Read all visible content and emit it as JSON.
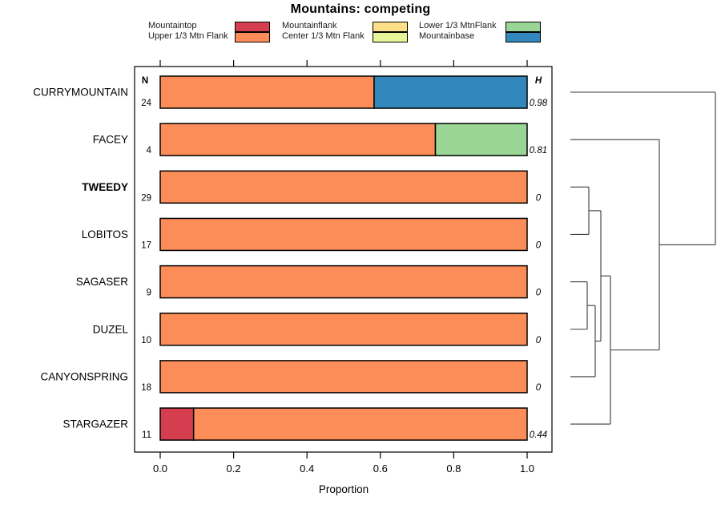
{
  "title": "Mountains: competing",
  "chart_data": {
    "type": "bar",
    "orientation": "horizontal-stacked",
    "title": "Mountains: competing",
    "xlabel": "Proportion",
    "xlim": [
      0,
      1
    ],
    "xticks": [
      "0.0",
      "0.2",
      "0.4",
      "0.6",
      "0.8",
      "1.0"
    ],
    "grid": false,
    "legend_position": "top",
    "columns": {
      "n_header": "N",
      "h_header": "H"
    },
    "legend": [
      {
        "label": "Mountaintop",
        "color": "#D53E4F"
      },
      {
        "label": "Upper 1/3 Mtn Flank",
        "color": "#FC8D59"
      },
      {
        "label": "Mountainflank",
        "color": "#FEE08B"
      },
      {
        "label": "Center 1/3 Mtn Flank",
        "color": "#E6F598"
      },
      {
        "label": "Lower 1/3 MtnFlank",
        "color": "#99D594"
      },
      {
        "label": "Mountainbase",
        "color": "#3288BD"
      }
    ],
    "rows": [
      {
        "label": "CURRYMOUNTAIN",
        "bold": false,
        "n": 24,
        "h": "0.98",
        "segments": [
          {
            "key": "Upper 1/3 Mtn Flank",
            "value": 0.583
          },
          {
            "key": "Mountainbase",
            "value": 0.417
          }
        ]
      },
      {
        "label": "FACEY",
        "bold": false,
        "n": 4,
        "h": "0.81",
        "segments": [
          {
            "key": "Upper 1/3 Mtn Flank",
            "value": 0.75
          },
          {
            "key": "Lower 1/3 MtnFlank",
            "value": 0.25
          }
        ]
      },
      {
        "label": "TWEEDY",
        "bold": true,
        "n": 29,
        "h": "0",
        "segments": [
          {
            "key": "Upper 1/3 Mtn Flank",
            "value": 1.0
          }
        ]
      },
      {
        "label": "LOBITOS",
        "bold": false,
        "n": 17,
        "h": "0",
        "segments": [
          {
            "key": "Upper 1/3 Mtn Flank",
            "value": 1.0
          }
        ]
      },
      {
        "label": "SAGASER",
        "bold": false,
        "n": 9,
        "h": "0",
        "segments": [
          {
            "key": "Upper 1/3 Mtn Flank",
            "value": 1.0
          }
        ]
      },
      {
        "label": "DUZEL",
        "bold": false,
        "n": 10,
        "h": "0",
        "segments": [
          {
            "key": "Upper 1/3 Mtn Flank",
            "value": 1.0
          }
        ]
      },
      {
        "label": "CANYONSPRING",
        "bold": false,
        "n": 18,
        "h": "0",
        "segments": [
          {
            "key": "Upper 1/3 Mtn Flank",
            "value": 1.0
          }
        ]
      },
      {
        "label": "STARGAZER",
        "bold": false,
        "n": 11,
        "h": "0.44",
        "segments": [
          {
            "key": "Mountaintop",
            "value": 0.091
          },
          {
            "key": "Upper 1/3 Mtn Flank",
            "value": 0.909
          }
        ]
      }
    ],
    "dendrogram": {
      "leaves": [
        "CURRYMOUNTAIN",
        "FACEY",
        "TWEEDY",
        "LOBITOS",
        "SAGASER",
        "DUZEL",
        "CANYONSPRING",
        "STARGAZER"
      ],
      "merges": [
        {
          "id": "m1",
          "a": "leaf:TWEEDY",
          "b": "leaf:LOBITOS",
          "x": 735
        },
        {
          "id": "m2",
          "a": "leaf:SAGASER",
          "b": "leaf:DUZEL",
          "x": 733
        },
        {
          "id": "m3",
          "a": "m2",
          "b": "leaf:CANYONSPRING",
          "x": 743
        },
        {
          "id": "m4",
          "a": "m1",
          "b": "m3",
          "x": 750
        },
        {
          "id": "m5",
          "a": "m4",
          "b": "leaf:STARGAZER",
          "x": 762
        },
        {
          "id": "m6",
          "a": "leaf:FACEY",
          "b": "m5",
          "x": 823
        },
        {
          "id": "m7",
          "a": "leaf:CURRYMOUNTAIN",
          "b": "m6",
          "x": 893
        }
      ]
    }
  }
}
